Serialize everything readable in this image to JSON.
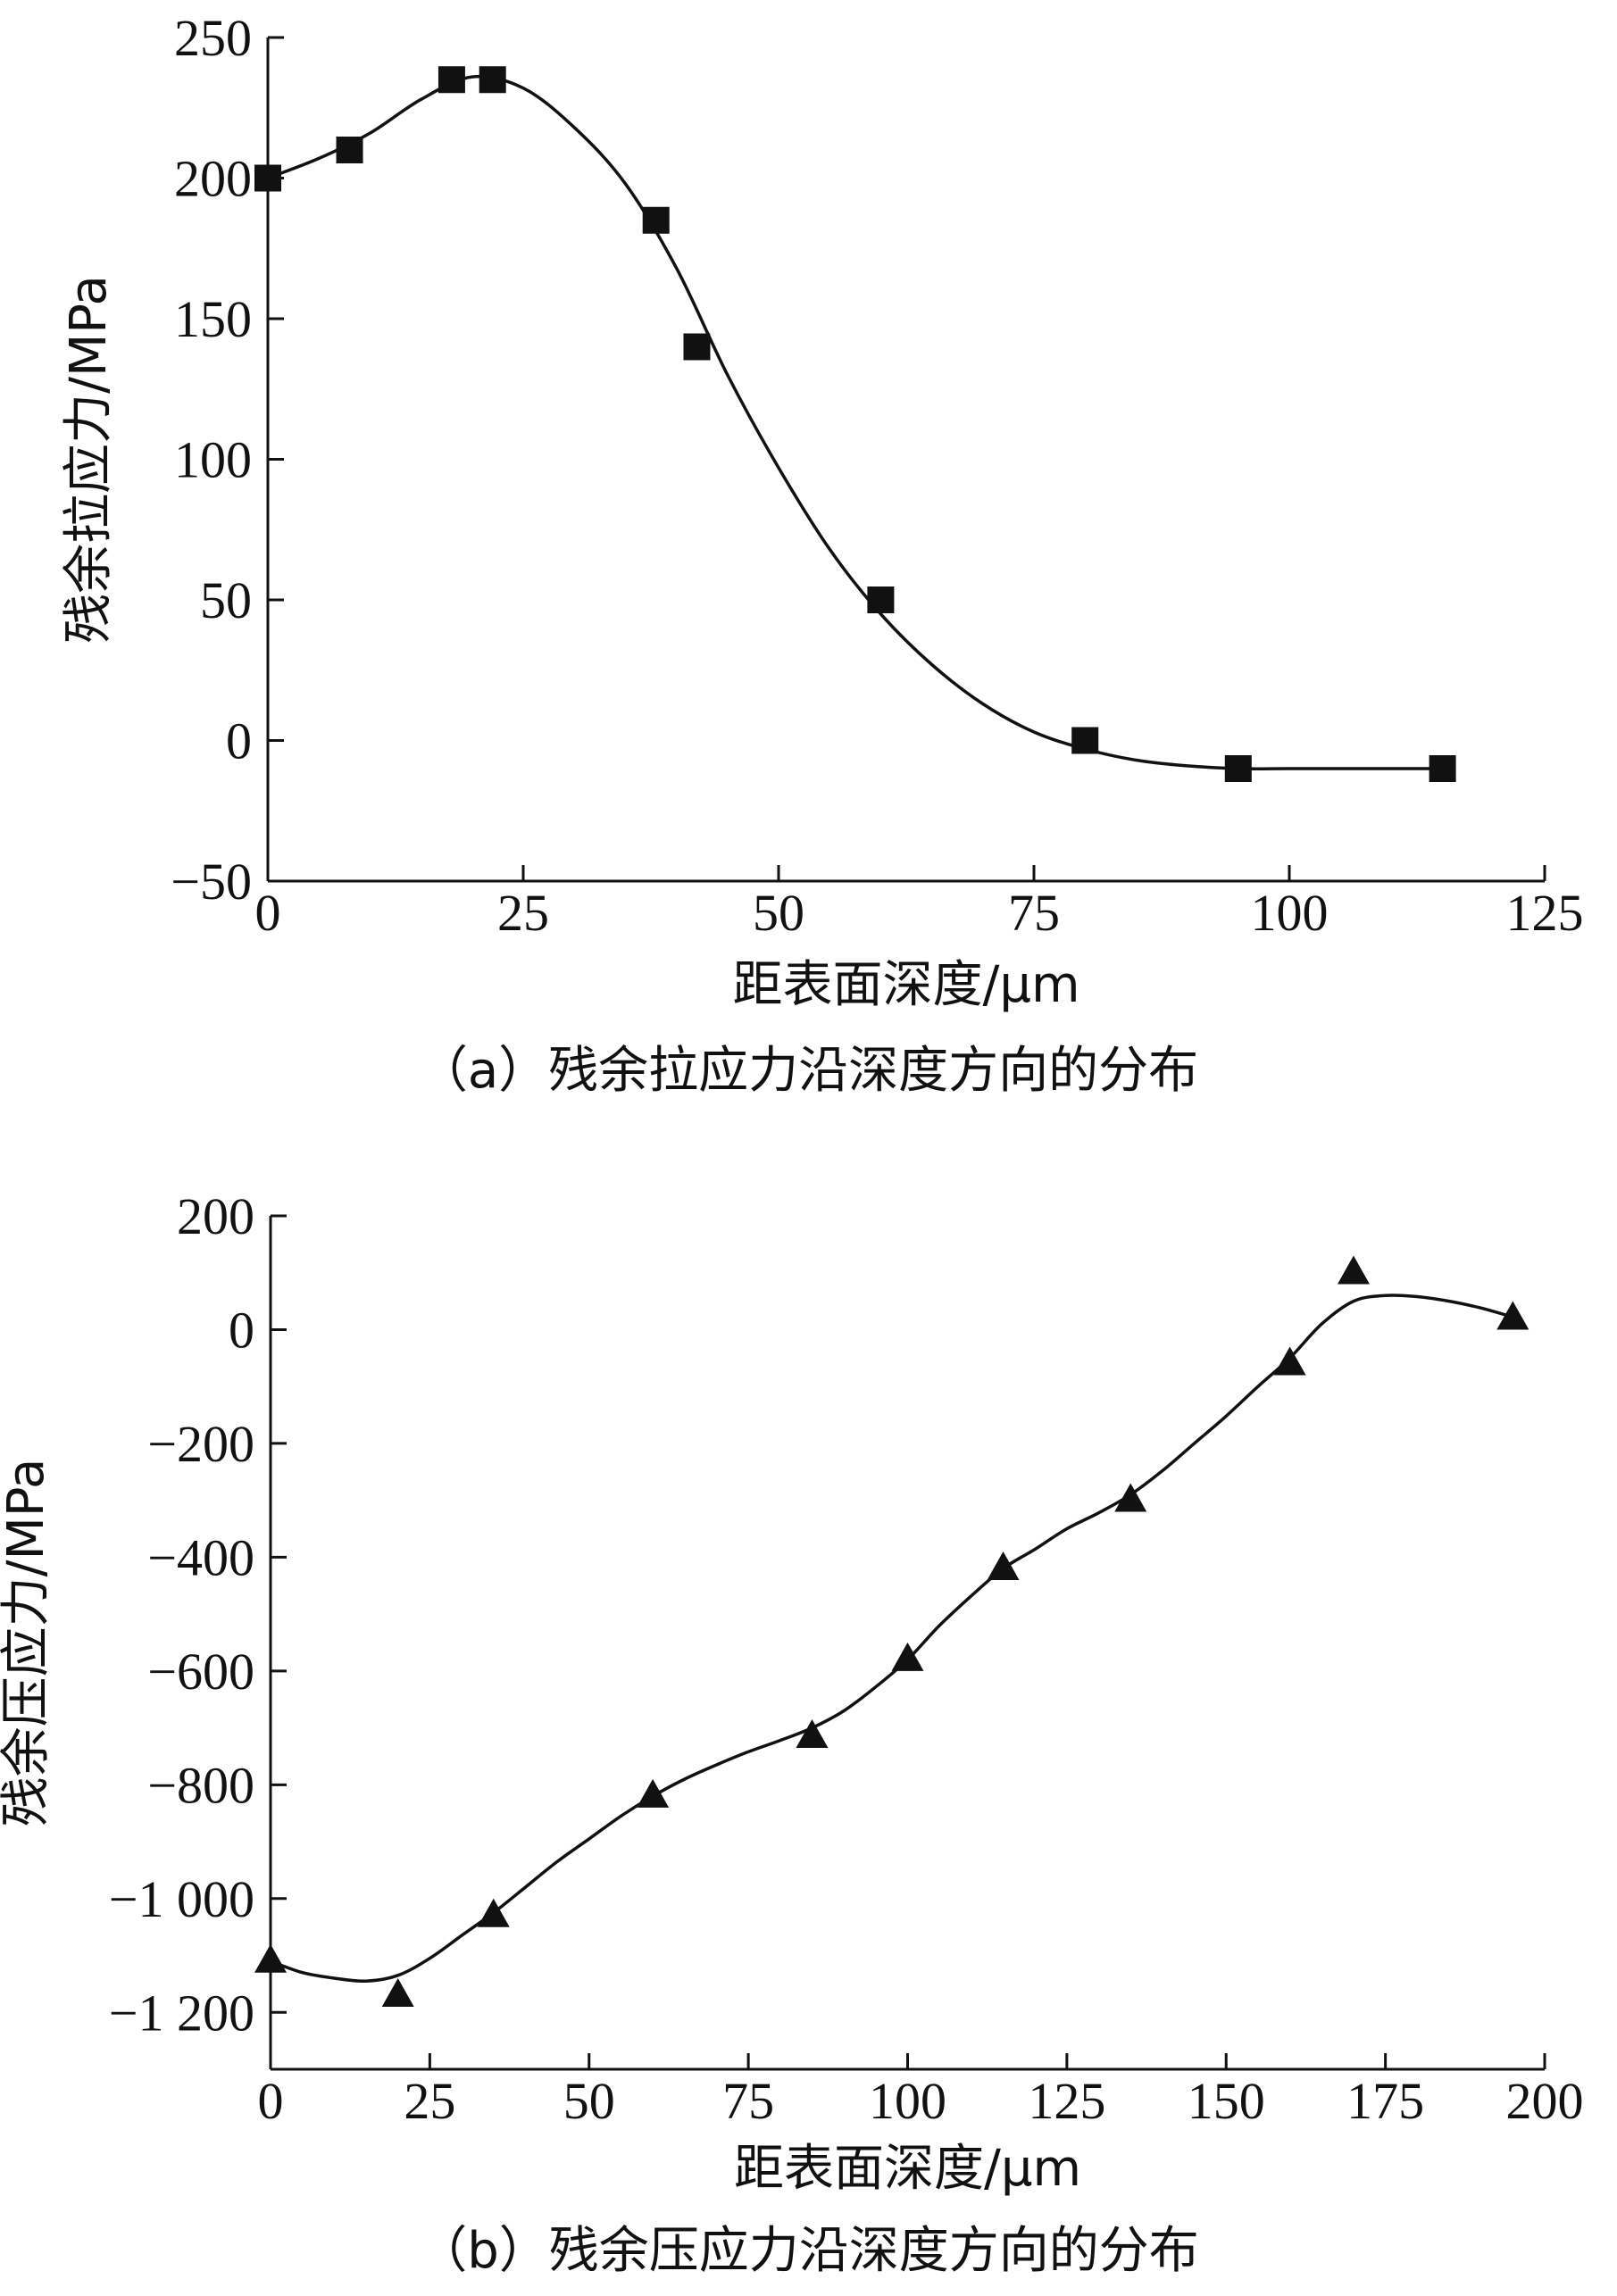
{
  "chart_data": [
    {
      "type": "scatter",
      "caption": "（a）残余拉应力沿深度方向的分布",
      "xlabel": "距表面深度/μm",
      "ylabel": "残余拉应力/MPa",
      "xlim": [
        0,
        125
      ],
      "ylim": [
        -50,
        250
      ],
      "xticks": [
        0,
        25,
        50,
        75,
        100,
        125
      ],
      "yticks": [
        -50,
        0,
        50,
        100,
        150,
        200,
        250
      ],
      "xtick_labels": [
        "0",
        "25",
        "50",
        "75",
        "100",
        "125"
      ],
      "ytick_labels": [
        "−50",
        "0",
        "50",
        "100",
        "150",
        "200",
        "250"
      ],
      "marker": "square",
      "series": [
        {
          "x": [
            0,
            8,
            18,
            22,
            38,
            42,
            60,
            80,
            95,
            115
          ],
          "y": [
            200,
            210,
            235,
            235,
            185,
            140,
            50,
            0,
            -10,
            -10
          ]
        }
      ],
      "fit_curve": {
        "x": [
          0,
          5,
          10,
          15,
          20,
          25,
          30,
          35,
          40,
          45,
          50,
          55,
          60,
          65,
          70,
          75,
          80,
          85,
          90,
          95,
          100,
          105,
          110,
          115
        ],
        "y": [
          200,
          207,
          216,
          228,
          236,
          232,
          218,
          198,
          168,
          130,
          97,
          68,
          45,
          27,
          13,
          3,
          -3,
          -7,
          -9,
          -10,
          -10,
          -10,
          -10,
          -10
        ]
      }
    },
    {
      "type": "scatter",
      "caption": "（b）残余压应力沿深度方向的分布",
      "xlabel": "距表面深度/μm",
      "ylabel": "残余压应力/MPa",
      "xlim": [
        0,
        200
      ],
      "ylim": [
        -1300,
        200
      ],
      "xticks": [
        0,
        25,
        50,
        75,
        100,
        125,
        150,
        175,
        200
      ],
      "yticks": [
        -1200,
        -1000,
        -800,
        -600,
        -400,
        -200,
        0,
        200
      ],
      "xtick_labels": [
        "0",
        "25",
        "50",
        "75",
        "100",
        "125",
        "150",
        "175",
        "200"
      ],
      "ytick_labels": [
        "−1 200",
        "−1 000",
        "−800",
        "−600",
        "−400",
        "−200",
        "0",
        "200"
      ],
      "marker": "triangle",
      "series": [
        {
          "x": [
            0,
            20,
            35,
            60,
            85,
            100,
            115,
            135,
            160,
            170,
            195
          ],
          "y": [
            -1110,
            -1170,
            -1030,
            -820,
            -715,
            -580,
            -420,
            -300,
            -60,
            100,
            20
          ]
        }
      ],
      "fit_curve": {
        "x": [
          0,
          5,
          10,
          15,
          20,
          25,
          30,
          35,
          40,
          45,
          50,
          55,
          60,
          65,
          70,
          75,
          80,
          85,
          90,
          95,
          100,
          105,
          110,
          115,
          120,
          125,
          130,
          135,
          140,
          145,
          150,
          155,
          160,
          165,
          170,
          175,
          180,
          185,
          190,
          195
        ],
        "y": [
          -1110,
          -1130,
          -1140,
          -1145,
          -1135,
          -1105,
          -1065,
          -1025,
          -980,
          -935,
          -895,
          -855,
          -820,
          -790,
          -765,
          -742,
          -722,
          -700,
          -670,
          -628,
          -580,
          -520,
          -468,
          -420,
          -386,
          -350,
          -322,
          -290,
          -248,
          -200,
          -152,
          -100,
          -50,
          10,
          50,
          60,
          58,
          50,
          38,
          22
        ]
      }
    }
  ]
}
